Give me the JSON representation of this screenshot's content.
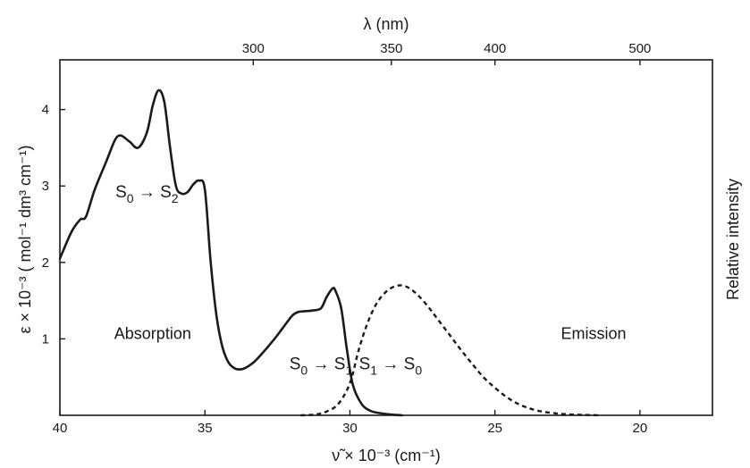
{
  "chart_data": {
    "type": "line",
    "title": "",
    "xlabel": "ν̃ × 10⁻³ (cm⁻¹)",
    "x2label": "λ (nm)",
    "ylabel": "ε × 10⁻³ ( mol⁻¹ dm³ cm⁻¹)",
    "y2label": "Relative intensity",
    "xlim": [
      40,
      17.5
    ],
    "ylim": [
      0,
      4.65
    ],
    "x_reversed": true,
    "grid": false,
    "legend": "none",
    "xticks": [
      40,
      35,
      30,
      25,
      20
    ],
    "xticklabels": [
      "40",
      "35",
      "30",
      "25",
      "20"
    ],
    "yticks": [
      1,
      2,
      3,
      4
    ],
    "yticklabels": [
      "1",
      "2",
      "3",
      "4"
    ],
    "x2ticks_nm": [
      300,
      350,
      400,
      500
    ],
    "x2ticklabels": [
      "300",
      "350",
      "400",
      "500"
    ],
    "series": [
      {
        "name": "",
        "style": "solid",
        "color": "#1a1a1a",
        "x": [
          40.0,
          39.6,
          39.3,
          39.1,
          38.8,
          38.4,
          38.1,
          37.9,
          37.6,
          37.3,
          37.0,
          36.8,
          36.6,
          36.4,
          36.2,
          36.0,
          35.8,
          35.6,
          35.4,
          35.2,
          35.0,
          34.8,
          34.6,
          34.4,
          34.2,
          34.0,
          33.8,
          33.6,
          33.3,
          33.0,
          32.6,
          32.3,
          32.0,
          31.8,
          31.6,
          31.3,
          31.0,
          30.8,
          30.6,
          30.5,
          30.3,
          30.1,
          29.9,
          29.6,
          29.3,
          29.0,
          28.6,
          28.2
        ],
        "y": [
          2.05,
          2.4,
          2.56,
          2.6,
          2.95,
          3.32,
          3.6,
          3.66,
          3.58,
          3.5,
          3.7,
          4.05,
          4.25,
          4.1,
          3.5,
          3.0,
          2.9,
          2.92,
          3.02,
          3.07,
          2.95,
          2.0,
          1.3,
          0.9,
          0.7,
          0.62,
          0.6,
          0.62,
          0.7,
          0.82,
          1.0,
          1.15,
          1.3,
          1.35,
          1.36,
          1.37,
          1.4,
          1.55,
          1.66,
          1.63,
          1.4,
          0.85,
          0.4,
          0.15,
          0.06,
          0.03,
          0.01,
          0.0
        ]
      },
      {
        "name": "",
        "style": "dashed",
        "color": "#1a1a1a",
        "x": [
          31.7,
          31.2,
          30.8,
          30.4,
          30.0,
          29.7,
          29.4,
          29.1,
          28.8,
          28.5,
          28.2,
          27.9,
          27.6,
          27.3,
          27.0,
          26.6,
          26.2,
          25.8,
          25.4,
          25.0,
          24.6,
          24.2,
          23.8,
          23.4,
          23.0,
          22.6,
          22.2,
          21.8,
          21.4
        ],
        "y": [
          0.0,
          0.01,
          0.05,
          0.15,
          0.42,
          0.85,
          1.2,
          1.45,
          1.6,
          1.68,
          1.7,
          1.65,
          1.55,
          1.42,
          1.27,
          1.07,
          0.87,
          0.68,
          0.5,
          0.36,
          0.24,
          0.15,
          0.09,
          0.05,
          0.03,
          0.015,
          0.008,
          0.004,
          0.0
        ]
      }
    ],
    "annotations": [
      {
        "id": "s0s2",
        "text_a": "S",
        "sub_a": "0",
        "arrow": "→",
        "text_b": "S",
        "sub_b": "2",
        "x": 37.0,
        "y": 2.85
      },
      {
        "id": "s0s1",
        "text_a": "S",
        "sub_a": "0",
        "arrow": "→",
        "text_b": "S",
        "sub_b": "1",
        "x": 31.0,
        "y": 0.6
      },
      {
        "id": "s1s0",
        "text_a": "S",
        "sub_a": "1",
        "arrow": "→",
        "text_b": "S",
        "sub_b": "0",
        "x": 28.6,
        "y": 0.6
      },
      {
        "id": "absorption",
        "text": "Absorption",
        "x": 36.8,
        "y": 1.0
      },
      {
        "id": "emission",
        "text": "Emission",
        "x": 21.6,
        "y": 1.0
      }
    ]
  }
}
